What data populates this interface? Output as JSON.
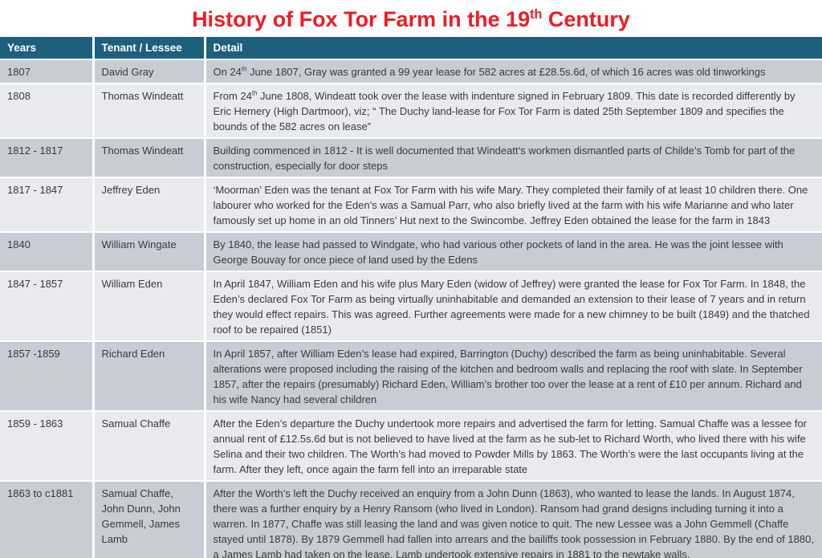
{
  "page": {
    "title": "History of Fox Tor Farm in the 19^{th} Century"
  },
  "colors": {
    "header_bg": "#1E5F7E",
    "row_dark": "#C8CDD5",
    "row_light": "#E8EAED",
    "body_text": "#3A3A3A",
    "title_red": "#EE1C25"
  },
  "table": {
    "columns": [
      "Years",
      "Tenant / Lessee",
      "Detail"
    ],
    "rows": [
      {
        "years": "1807",
        "tenant": "David Gray",
        "detail": "On 24^{th} June 1807, Gray was granted a 99 year lease for 582 acres at £28.5s.6d,  of which 16 acres was old tinworkings"
      },
      {
        "years": "1808",
        "tenant": "Thomas Windeatt",
        "detail": "From 24^{th} June 1808, Windeatt took over the lease with indenture signed in February 1809. This date is recorded differently by Eric Hemery (High Dartmoor), viz; “ The Duchy land-lease for Fox Tor Farm is dated 25th September 1809 and specifies the bounds of the 582 acres on lease”"
      },
      {
        "years": "1812 - 1817",
        "tenant": "Thomas Windeatt",
        "detail": "Building commenced in 1812 - It is well documented that Windeatt’s workmen dismantled parts of Childe’s Tomb for part of the construction, especially for door steps"
      },
      {
        "years": "1817 - 1847",
        "tenant": "Jeffrey Eden",
        "detail": "‘Moorman’ Eden was the tenant at Fox Tor Farm with his wife Mary. They completed their family of at least 10 children there. One labourer who worked for the Eden’s was a Samual Parr, who also briefly lived at the farm with his wife Marianne and who later famously set up home in an old Tinners’ Hut next to the Swincombe. Jeffrey Eden obtained the lease for the farm in 1843"
      },
      {
        "years": "1840",
        "tenant": "William Wingate",
        "detail": "By 1840, the lease had passed to Windgate, who had various other pockets of land in the area. He was the joint lessee with George Bouvay for once piece of land used by the Edens"
      },
      {
        "years": "1847 - 1857",
        "tenant": "William Eden",
        "detail": "In April 1847, William Eden and his wife plus Mary Eden (widow of Jeffrey) were granted the lease for Fox Tor Farm. In 1848, the Eden’s declared Fox Tor Farm as being virtually uninhabitable and demanded an extension to their lease of 7 years and in return they would effect repairs. This was agreed. Further agreements were made for a new chimney to be built (1849) and the thatched roof to be repaired (1851)"
      },
      {
        "years": "1857 -1859",
        "tenant": "Richard Eden",
        "detail": "In April 1857, after William Eden’s lease had expired, Barrington (Duchy) described the farm as being uninhabitable. Several alterations were proposed including the raising of the kitchen and bedroom walls and replacing the roof with slate. In September 1857, after the repairs (presumably) Richard Eden, William’s brother too over the lease at a rent of £10 per annum. Richard and his wife Nancy had several children"
      },
      {
        "years": "1859 - 1863",
        "tenant": "Samual Chaffe",
        "detail": "After the Eden’s departure the Duchy undertook more repairs and advertised the farm for letting. Samual Chaffe was a lessee for annual rent of £12.5s.6d but is not believed to have lived at the farm as he sub-let to Richard Worth, who lived there with his wife Selina and their two children. The Worth’s had moved to Powder Mills by 1863. The Worth’s were the last occupants living at the farm. After they left, once again the farm fell into an irreparable state"
      },
      {
        "years": "1863 to c1881",
        "tenant": "Samual Chaffe, John Dunn, John Gemmell, James Lamb",
        "detail": "After the Worth’s left the Duchy received an enquiry from a John Dunn (1863), who wanted to lease the lands. In August 1874, there was a further enquiry by a Henry Ransom (who lived in London). Ransom had grand designs including turning it into a warren. In 1877, Chaffe was still leasing the land and was given notice to quit. The new Lessee was a John Gemmell (Chaffe stayed until 1878). By 1879 Gemmell had fallen into arrears and the bailiffs took possession in February 1880. By the end of 1880, a James Lamb had taken on the lease. Lamb undertook extensive repairs in 1881 to the newtake walls."
      }
    ]
  }
}
